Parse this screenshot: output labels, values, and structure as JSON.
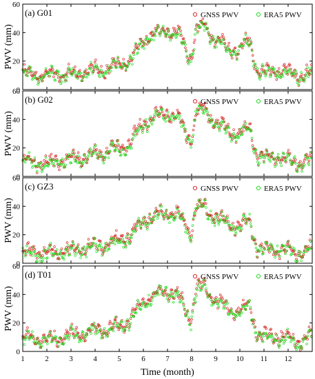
{
  "figure": {
    "xlabel": "Time (month)",
    "ylabel": "PWV (mm)"
  },
  "chart_data": [
    {
      "type": "scatter",
      "panel_label": "(a) G01",
      "xlim": [
        1,
        13
      ],
      "ylim": [
        0,
        60
      ],
      "x_ticks": [
        1,
        2,
        3,
        4,
        5,
        6,
        7,
        8,
        9,
        10,
        11,
        12
      ],
      "y_ticks": [
        0,
        20,
        40,
        60
      ],
      "legend_position": "top-right",
      "series": [
        {
          "name": "GNSS PWV",
          "color": "#d62a2a",
          "marker": "circle"
        },
        {
          "name": "ERA5 PWV",
          "color": "#22dd22",
          "marker": "circle"
        }
      ],
      "x_month": [
        1.0,
        1.5,
        2.0,
        2.5,
        3.0,
        3.5,
        4.0,
        4.5,
        5.0,
        5.5,
        6.0,
        6.5,
        7.0,
        7.5,
        7.95,
        8.2,
        8.5,
        9.0,
        9.5,
        10.0,
        10.4,
        10.7,
        11.0,
        11.5,
        12.0,
        12.5,
        12.9
      ],
      "pwv_mm": [
        12,
        11,
        10,
        12,
        11,
        12,
        14,
        15,
        18,
        22,
        35,
        40,
        43,
        38,
        22,
        42,
        45,
        35,
        30,
        28,
        35,
        15,
        12,
        14,
        12,
        10,
        11
      ]
    },
    {
      "type": "scatter",
      "panel_label": "(b) G02",
      "xlim": [
        1,
        13
      ],
      "ylim": [
        0,
        60
      ],
      "x_ticks": [
        1,
        2,
        3,
        4,
        5,
        6,
        7,
        8,
        9,
        10,
        11,
        12
      ],
      "y_ticks": [
        0,
        20,
        40,
        60
      ],
      "legend_position": "top-right",
      "series": [
        {
          "name": "GNSS PWV",
          "color": "#d62a2a",
          "marker": "circle"
        },
        {
          "name": "ERA5 PWV",
          "color": "#22dd22",
          "marker": "circle"
        }
      ],
      "x_month": [
        1.0,
        1.5,
        2.0,
        2.5,
        3.0,
        3.5,
        4.0,
        4.5,
        5.0,
        5.5,
        6.0,
        6.5,
        7.0,
        7.5,
        7.95,
        8.2,
        8.5,
        9.0,
        9.5,
        10.0,
        10.4,
        10.7,
        11.0,
        11.5,
        12.0,
        12.5,
        12.9
      ],
      "pwv_mm": [
        11,
        10,
        9,
        12,
        12,
        14,
        16,
        18,
        20,
        25,
        38,
        42,
        45,
        40,
        25,
        46,
        48,
        38,
        32,
        30,
        35,
        15,
        13,
        15,
        12,
        10,
        11
      ]
    },
    {
      "type": "scatter",
      "panel_label": "(c) GZ3",
      "xlim": [
        1,
        13
      ],
      "ylim": [
        0,
        60
      ],
      "x_ticks": [
        1,
        2,
        3,
        4,
        5,
        6,
        7,
        8,
        9,
        10,
        11,
        12
      ],
      "y_ticks": [
        0,
        20,
        40,
        60
      ],
      "legend_position": "top-right",
      "series": [
        {
          "name": "GNSS PWV",
          "color": "#d62a2a",
          "marker": "circle"
        },
        {
          "name": "ERA5 PWV",
          "color": "#22dd22",
          "marker": "circle"
        }
      ],
      "x_month": [
        1.0,
        1.5,
        2.0,
        2.5,
        3.0,
        3.5,
        4.0,
        4.5,
        5.0,
        5.5,
        6.0,
        6.5,
        7.0,
        7.5,
        7.95,
        8.2,
        8.5,
        9.0,
        9.5,
        10.0,
        10.4,
        10.7,
        11.0,
        11.5,
        12.0,
        12.5,
        12.9
      ],
      "pwv_mm": [
        7,
        8,
        7,
        9,
        9,
        11,
        12,
        14,
        16,
        20,
        30,
        34,
        37,
        34,
        22,
        40,
        40,
        32,
        28,
        26,
        30,
        12,
        9,
        11,
        9,
        8,
        9
      ]
    },
    {
      "type": "scatter",
      "panel_label": "(d) T01",
      "xlim": [
        1,
        13
      ],
      "ylim": [
        0,
        60
      ],
      "x_ticks": [
        1,
        2,
        3,
        4,
        5,
        6,
        7,
        8,
        9,
        10,
        11,
        12
      ],
      "y_ticks": [
        0,
        20,
        40,
        60
      ],
      "legend_position": "top-right",
      "series": [
        {
          "name": "GNSS PWV",
          "color": "#d62a2a",
          "marker": "circle"
        },
        {
          "name": "ERA5 PWV",
          "color": "#22dd22",
          "marker": "circle"
        }
      ],
      "x_month": [
        1.0,
        1.5,
        2.0,
        2.5,
        3.0,
        3.5,
        4.0,
        4.5,
        5.0,
        5.5,
        6.0,
        6.5,
        7.0,
        7.5,
        7.95,
        8.2,
        8.5,
        9.0,
        9.5,
        10.0,
        10.4,
        10.7,
        11.0,
        11.5,
        12.0,
        12.5,
        12.9
      ],
      "pwv_mm": [
        10,
        9,
        8,
        10,
        12,
        13,
        15,
        16,
        18,
        23,
        36,
        40,
        44,
        38,
        22,
        44,
        46,
        36,
        30,
        28,
        33,
        14,
        10,
        12,
        9,
        7,
        10
      ]
    }
  ]
}
